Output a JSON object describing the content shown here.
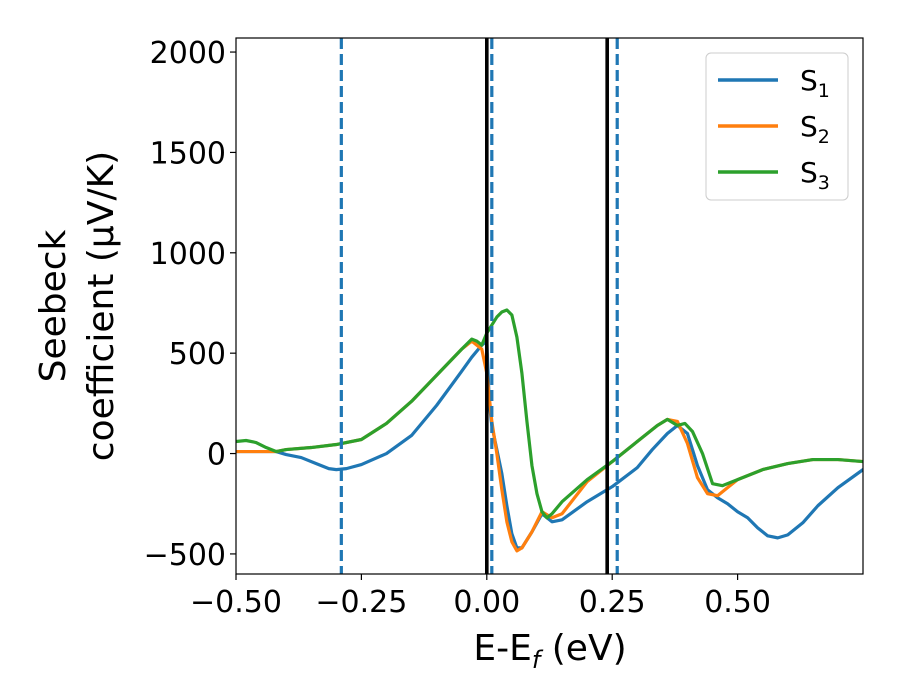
{
  "chart_data": {
    "type": "line",
    "title": "",
    "xlabel": {
      "main": "E-E",
      "sub": "f",
      "suffix": " (eV)"
    },
    "ylabel": {
      "line1": "Seebeck",
      "line2": "coefficient  (μV/K)"
    },
    "xlim": [
      -0.5,
      0.75
    ],
    "ylim": [
      -600,
      2070
    ],
    "xticks": [
      -0.5,
      -0.25,
      0.0,
      0.25,
      0.5
    ],
    "xtick_labels": [
      "−0.50",
      "−0.25",
      "0.00",
      "0.25",
      "0.50"
    ],
    "yticks": [
      -500,
      0,
      500,
      1000,
      1500,
      2000
    ],
    "ytick_labels": [
      "−500",
      "0",
      "500",
      "1000",
      "1500",
      "2000"
    ],
    "grid": false,
    "legend_position": "top-right",
    "series": [
      {
        "name": "S",
        "subscript": "1",
        "color": "#1f77b4",
        "points": [
          [
            -0.5,
            10
          ],
          [
            -0.45,
            10
          ],
          [
            -0.42,
            10
          ],
          [
            -0.4,
            -5
          ],
          [
            -0.37,
            -20
          ],
          [
            -0.34,
            -50
          ],
          [
            -0.315,
            -75
          ],
          [
            -0.3,
            -80
          ],
          [
            -0.28,
            -75
          ],
          [
            -0.25,
            -55
          ],
          [
            -0.2,
            0
          ],
          [
            -0.15,
            90
          ],
          [
            -0.1,
            240
          ],
          [
            -0.05,
            410
          ],
          [
            -0.03,
            480
          ],
          [
            -0.01,
            540
          ],
          [
            0.0,
            560
          ],
          [
            0.005,
            250
          ],
          [
            0.01,
            140
          ],
          [
            0.02,
            20
          ],
          [
            0.03,
            -100
          ],
          [
            0.04,
            -260
          ],
          [
            0.05,
            -400
          ],
          [
            0.06,
            -470
          ],
          [
            0.07,
            -470
          ],
          [
            0.09,
            -390
          ],
          [
            0.11,
            -300
          ],
          [
            0.13,
            -340
          ],
          [
            0.15,
            -330
          ],
          [
            0.2,
            -240
          ],
          [
            0.25,
            -165
          ],
          [
            0.3,
            -70
          ],
          [
            0.33,
            20
          ],
          [
            0.36,
            100
          ],
          [
            0.38,
            140
          ],
          [
            0.4,
            100
          ],
          [
            0.42,
            -60
          ],
          [
            0.44,
            -180
          ],
          [
            0.46,
            -220
          ],
          [
            0.48,
            -250
          ],
          [
            0.5,
            -290
          ],
          [
            0.52,
            -320
          ],
          [
            0.54,
            -370
          ],
          [
            0.56,
            -410
          ],
          [
            0.58,
            -420
          ],
          [
            0.6,
            -405
          ],
          [
            0.63,
            -345
          ],
          [
            0.66,
            -260
          ],
          [
            0.7,
            -170
          ],
          [
            0.75,
            -80
          ]
        ]
      },
      {
        "name": "S",
        "subscript": "2",
        "color": "#ff7f0e",
        "points": [
          [
            -0.5,
            10
          ],
          [
            -0.45,
            10
          ],
          [
            -0.42,
            10
          ],
          [
            -0.4,
            20
          ],
          [
            -0.35,
            30
          ],
          [
            -0.3,
            45
          ],
          [
            -0.25,
            70
          ],
          [
            -0.2,
            150
          ],
          [
            -0.15,
            260
          ],
          [
            -0.1,
            390
          ],
          [
            -0.05,
            520
          ],
          [
            -0.03,
            560
          ],
          [
            -0.01,
            520
          ],
          [
            0.0,
            400
          ],
          [
            0.01,
            160
          ],
          [
            0.02,
            0
          ],
          [
            0.03,
            -180
          ],
          [
            0.04,
            -340
          ],
          [
            0.05,
            -440
          ],
          [
            0.06,
            -485
          ],
          [
            0.07,
            -470
          ],
          [
            0.09,
            -390
          ],
          [
            0.11,
            -290
          ],
          [
            0.13,
            -320
          ],
          [
            0.15,
            -300
          ],
          [
            0.2,
            -140
          ],
          [
            0.25,
            -40
          ],
          [
            0.3,
            60
          ],
          [
            0.34,
            140
          ],
          [
            0.36,
            170
          ],
          [
            0.38,
            160
          ],
          [
            0.4,
            50
          ],
          [
            0.42,
            -120
          ],
          [
            0.44,
            -200
          ],
          [
            0.46,
            -210
          ],
          [
            0.48,
            -170
          ],
          [
            0.5,
            -130
          ],
          [
            0.55,
            -80
          ],
          [
            0.6,
            -50
          ],
          [
            0.65,
            -30
          ],
          [
            0.7,
            -30
          ],
          [
            0.75,
            -40
          ]
        ]
      },
      {
        "name": "S",
        "subscript": "3",
        "color": "#2ca02c",
        "points": [
          [
            -0.5,
            60
          ],
          [
            -0.48,
            65
          ],
          [
            -0.46,
            55
          ],
          [
            -0.44,
            30
          ],
          [
            -0.42,
            10
          ],
          [
            -0.4,
            20
          ],
          [
            -0.35,
            30
          ],
          [
            -0.3,
            45
          ],
          [
            -0.25,
            70
          ],
          [
            -0.2,
            150
          ],
          [
            -0.15,
            260
          ],
          [
            -0.1,
            390
          ],
          [
            -0.05,
            520
          ],
          [
            -0.03,
            570
          ],
          [
            -0.02,
            560
          ],
          [
            -0.01,
            540
          ],
          [
            0.0,
            600
          ],
          [
            0.01,
            640
          ],
          [
            0.02,
            680
          ],
          [
            0.03,
            705
          ],
          [
            0.04,
            715
          ],
          [
            0.05,
            690
          ],
          [
            0.06,
            580
          ],
          [
            0.07,
            400
          ],
          [
            0.08,
            160
          ],
          [
            0.09,
            -60
          ],
          [
            0.1,
            -200
          ],
          [
            0.11,
            -290
          ],
          [
            0.12,
            -320
          ],
          [
            0.13,
            -300
          ],
          [
            0.15,
            -240
          ],
          [
            0.2,
            -130
          ],
          [
            0.25,
            -40
          ],
          [
            0.3,
            60
          ],
          [
            0.34,
            140
          ],
          [
            0.36,
            170
          ],
          [
            0.38,
            140
          ],
          [
            0.395,
            150
          ],
          [
            0.41,
            110
          ],
          [
            0.43,
            0
          ],
          [
            0.45,
            -150
          ],
          [
            0.47,
            -160
          ],
          [
            0.5,
            -130
          ],
          [
            0.55,
            -80
          ],
          [
            0.6,
            -50
          ],
          [
            0.65,
            -30
          ],
          [
            0.7,
            -30
          ],
          [
            0.75,
            -40
          ]
        ]
      }
    ],
    "vlines": [
      {
        "x": -0.29,
        "style": "dashed",
        "color": "#1f77b4"
      },
      {
        "x": 0.01,
        "style": "dashed",
        "color": "#1f77b4"
      },
      {
        "x": 0.26,
        "style": "dashed",
        "color": "#1f77b4"
      },
      {
        "x": 0.0,
        "style": "solid",
        "color": "#000000"
      },
      {
        "x": 0.24,
        "style": "solid",
        "color": "#000000"
      }
    ]
  }
}
